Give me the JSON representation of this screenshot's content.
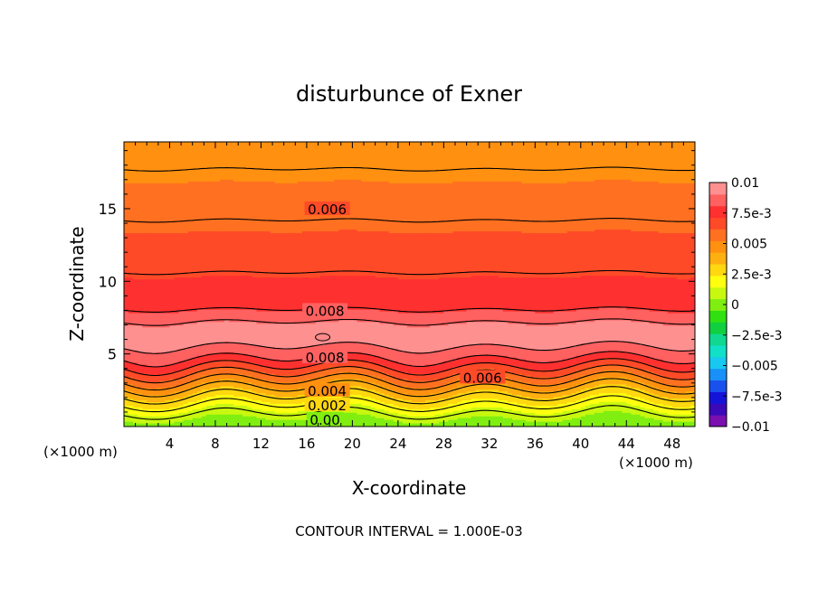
{
  "chart_data": {
    "type": "heatmap",
    "title": "disturbunce of Exner",
    "xlabel": "X-coordinate",
    "ylabel": "Z-coordinate",
    "x_unit_left": "(×1000 m)",
    "x_unit_right": "(×1000 m)",
    "xlim": [
      0,
      50
    ],
    "ylim": [
      0,
      19.6
    ],
    "x_ticks": [
      4,
      8,
      12,
      16,
      20,
      24,
      28,
      32,
      36,
      40,
      44,
      48
    ],
    "y_ticks": [
      5,
      10,
      15
    ],
    "footer": "CONTOUR INTERVAL = 1.000E-03",
    "colorbar": {
      "range": [
        -0.01,
        0.01
      ],
      "tick_labels": [
        "0.01",
        "7.5e-3",
        "0.005",
        "2.5e-3",
        "0",
        "−2.5e-3",
        "−0.005",
        "−7.5e-3",
        "−0.01"
      ],
      "tick_values": [
        0.01,
        0.0075,
        0.005,
        0.0025,
        0,
        -0.0025,
        -0.005,
        -0.0075,
        -0.01
      ],
      "colors": [
        "#7a10b0",
        "#3a0ab8",
        "#1414d8",
        "#1a50ee",
        "#1890f8",
        "#18c8f0",
        "#10e0c8",
        "#10d890",
        "#10d040",
        "#30e010",
        "#80ee10",
        "#c8f810",
        "#ffff10",
        "#ffd810",
        "#ffb010",
        "#ff9010",
        "#ff7020",
        "#ff4a28",
        "#ff3030",
        "#ff6060",
        "#ff9090"
      ]
    },
    "profile": [
      {
        "z": 0.0,
        "value": 0.0
      },
      {
        "z": 0.6,
        "value": 0.0005
      },
      {
        "z": 1.2,
        "value": 0.0015
      },
      {
        "z": 1.8,
        "value": 0.0025
      },
      {
        "z": 2.4,
        "value": 0.0035
      },
      {
        "z": 2.9,
        "value": 0.0045
      },
      {
        "z": 3.4,
        "value": 0.0055
      },
      {
        "z": 3.9,
        "value": 0.0065
      },
      {
        "z": 4.4,
        "value": 0.0075
      },
      {
        "z": 5.0,
        "value": 0.0085
      },
      {
        "z": 5.7,
        "value": 0.0092
      },
      {
        "z": 6.6,
        "value": 0.0094
      },
      {
        "z": 7.5,
        "value": 0.0088
      },
      {
        "z": 8.2,
        "value": 0.0078
      },
      {
        "z": 10.0,
        "value": 0.0073
      },
      {
        "z": 11.0,
        "value": 0.0068
      },
      {
        "z": 13.0,
        "value": 0.0063
      },
      {
        "z": 15.0,
        "value": 0.0058
      },
      {
        "z": 17.0,
        "value": 0.0052
      },
      {
        "z": 18.8,
        "value": 0.0047
      },
      {
        "z": 19.6,
        "value": 0.0045
      }
    ],
    "contour_labels": [
      {
        "text": "0.006",
        "x": 17.8,
        "z": 15.0
      },
      {
        "text": "0.008",
        "x": 17.6,
        "z": 8.0
      },
      {
        "text": "0.008",
        "x": 17.6,
        "z": 4.8
      },
      {
        "text": "0.006",
        "x": 31.4,
        "z": 3.4
      },
      {
        "text": "0.004",
        "x": 17.8,
        "z": 2.5
      },
      {
        "text": "0.002",
        "x": 17.8,
        "z": 1.5
      },
      {
        "text": "0.00",
        "x": 17.6,
        "z": 0.5
      }
    ]
  }
}
